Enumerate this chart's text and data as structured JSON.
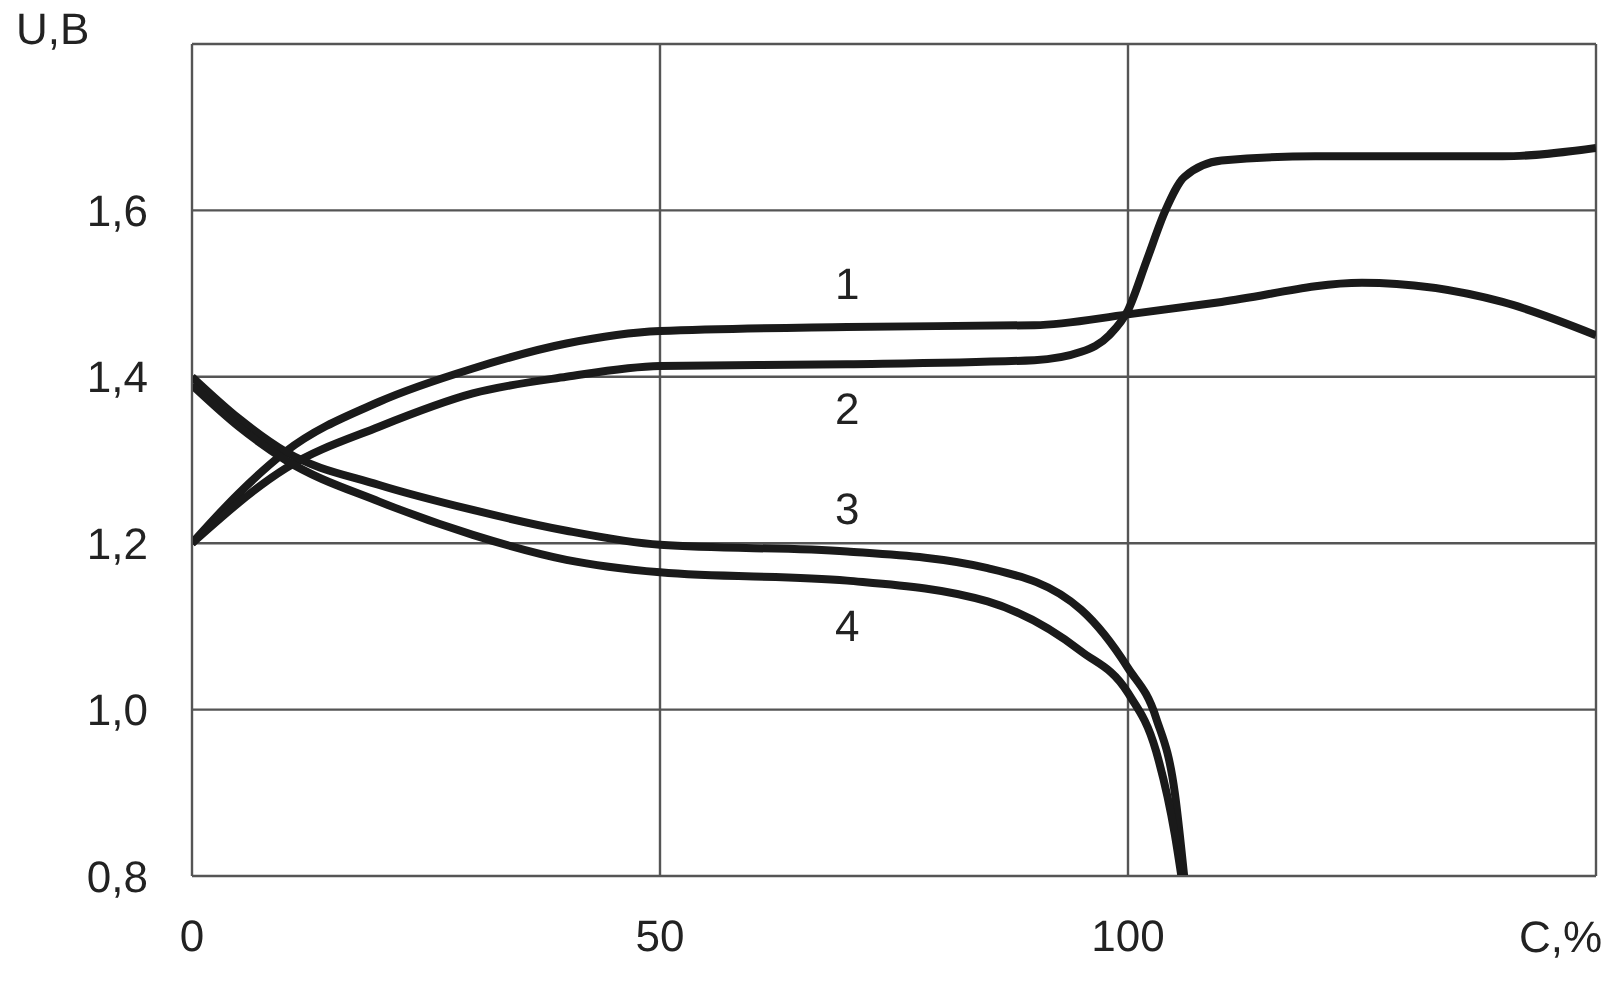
{
  "chart_data": {
    "type": "line",
    "xlabel": "C,%",
    "ylabel": "U,B",
    "xlim": [
      0,
      150
    ],
    "ylim": [
      0.8,
      1.8
    ],
    "xticks": [
      0,
      50,
      100,
      {
        "value": 150,
        "label": null
      }
    ],
    "yticks": [
      {
        "value": 0.8,
        "label": "0,8"
      },
      {
        "value": 1.0,
        "label": "1,0"
      },
      {
        "value": 1.2,
        "label": "1,2"
      },
      {
        "value": 1.4,
        "label": "1,4"
      },
      {
        "value": 1.6,
        "label": "1,6"
      },
      {
        "value": 1.8,
        "label": null
      }
    ],
    "grid": true,
    "legend": false,
    "marker": "none",
    "line_style": "solid",
    "series": [
      {
        "name": "1",
        "color": "#1a1a1a",
        "x": [
          0,
          5,
          10,
          20,
          30,
          40,
          50,
          70,
          90,
          100,
          110,
          125,
          140,
          150
        ],
        "values": [
          1.2,
          1.26,
          1.31,
          1.37,
          1.41,
          1.44,
          1.455,
          1.46,
          1.462,
          1.475,
          1.49,
          1.513,
          1.49,
          1.45
        ]
      },
      {
        "name": "2",
        "color": "#1a1a1a",
        "x": [
          0,
          10,
          20,
          30,
          40,
          50,
          70,
          90,
          95,
          98,
          100,
          102,
          104,
          106,
          110,
          120,
          140,
          150
        ],
        "values": [
          1.2,
          1.29,
          1.34,
          1.38,
          1.4,
          1.413,
          1.415,
          1.42,
          1.43,
          1.45,
          1.48,
          1.54,
          1.6,
          1.64,
          1.66,
          1.665,
          1.665,
          1.675
        ]
      },
      {
        "name": "3",
        "color": "#1a1a1a",
        "x": [
          0,
          5,
          10,
          20,
          30,
          40,
          50,
          70,
          85,
          95,
          100,
          103,
          105,
          106
        ],
        "values": [
          1.4,
          1.35,
          1.31,
          1.27,
          1.24,
          1.215,
          1.198,
          1.19,
          1.17,
          1.12,
          1.05,
          0.99,
          0.9,
          0.8
        ]
      },
      {
        "name": "4",
        "color": "#1a1a1a",
        "x": [
          0,
          5,
          10,
          20,
          30,
          40,
          50,
          70,
          85,
          95,
          100,
          103,
          105,
          105.7
        ],
        "values": [
          1.39,
          1.34,
          1.3,
          1.25,
          1.21,
          1.18,
          1.165,
          1.155,
          1.13,
          1.07,
          1.02,
          0.95,
          0.85,
          0.8
        ]
      }
    ]
  }
}
